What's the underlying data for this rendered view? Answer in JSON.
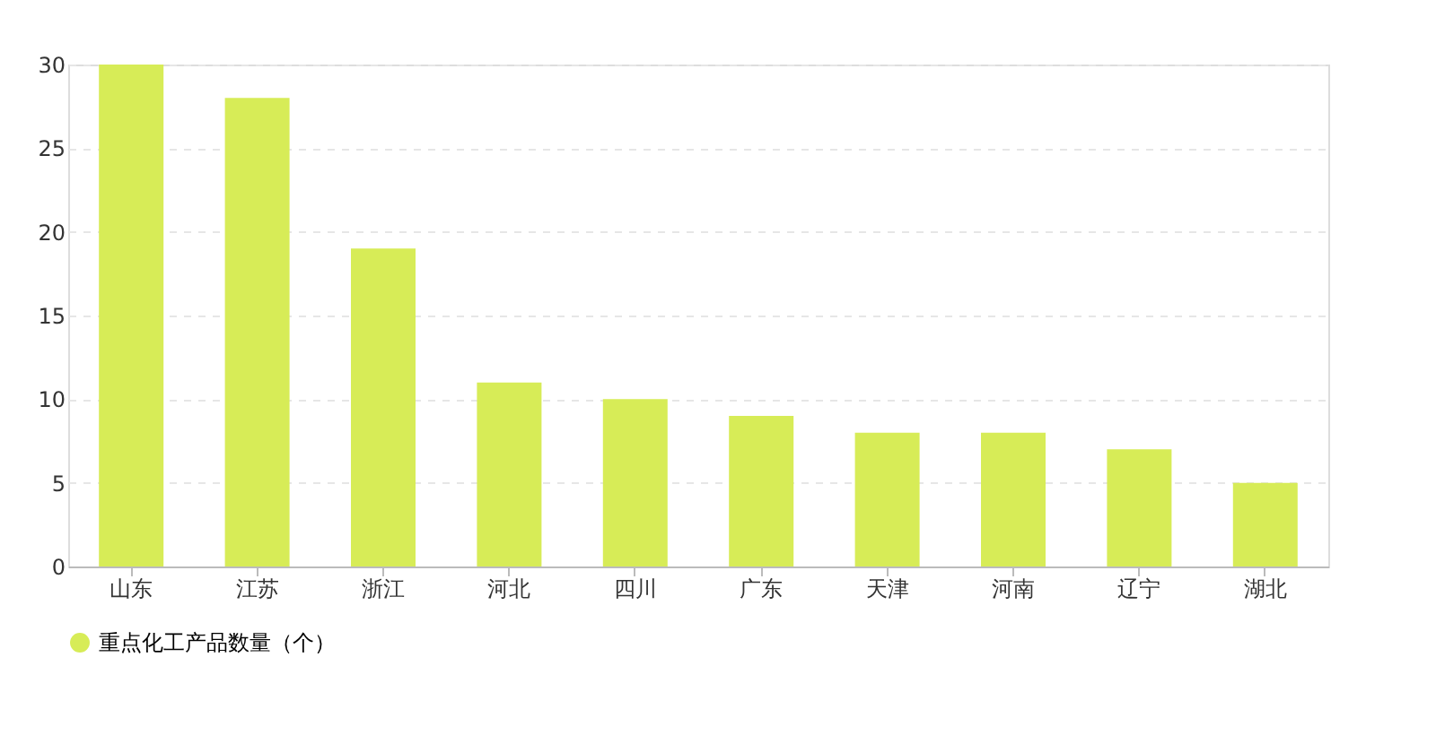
{
  "chart_data": {
    "type": "bar",
    "categories": [
      "山东",
      "江苏",
      "浙江",
      "河北",
      "四川",
      "广东",
      "天津",
      "河南",
      "辽宁",
      "湖北"
    ],
    "series": [
      {
        "name": "重点化工产品数量（个）",
        "color": "#d7ec57",
        "values": [
          30,
          28,
          19,
          11,
          10,
          9,
          8,
          8,
          7,
          5
        ]
      }
    ],
    "ylim": [
      0,
      30
    ],
    "yticks": [
      0,
      5,
      10,
      15,
      20,
      25,
      30
    ],
    "grid": "y",
    "legend": "bottom"
  }
}
